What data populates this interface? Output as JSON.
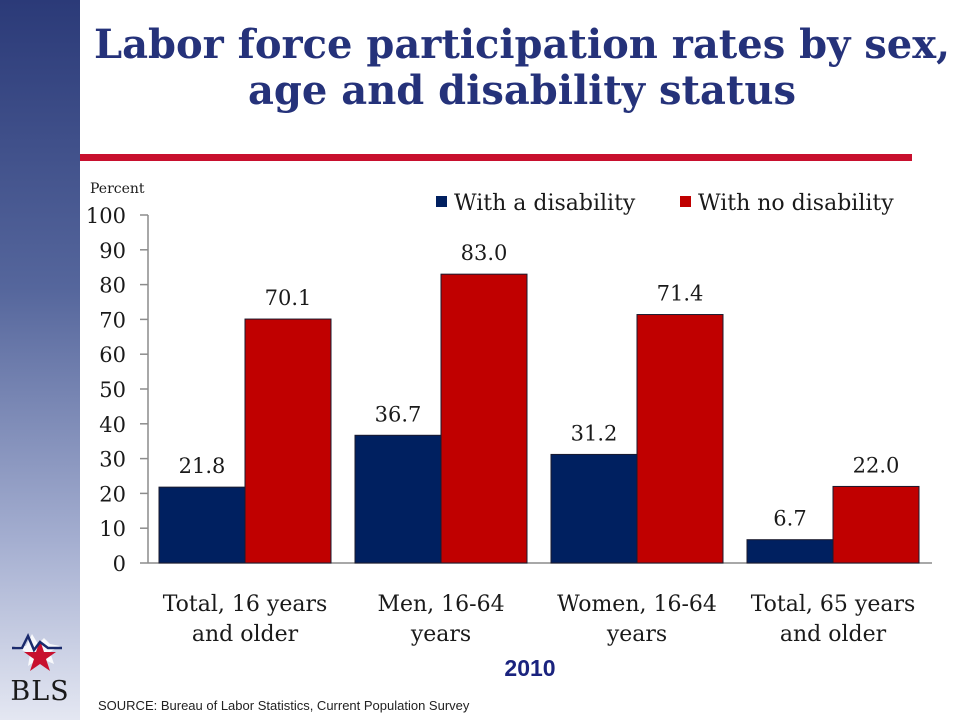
{
  "slide": {
    "title": "Labor force participation rates by sex, age and disability status",
    "year": "2010",
    "source": "SOURCE:  Bureau of Labor Statistics, Current Population Survey",
    "logo_text": "BLS"
  },
  "colors": {
    "with_disability": "#002060",
    "no_disability": "#c00000",
    "title": "#25327a",
    "rule": "#c8102e"
  },
  "chart_data": {
    "type": "bar",
    "ylabel": "Percent",
    "ylim": [
      0,
      100
    ],
    "yticks": [
      0,
      10,
      20,
      30,
      40,
      50,
      60,
      70,
      80,
      90,
      100
    ],
    "grid": false,
    "legend_position": "top-right",
    "categories": [
      [
        "Total, 16 years",
        "and older"
      ],
      [
        "Men, 16-64",
        "years"
      ],
      [
        "Women, 16-64",
        "years"
      ],
      [
        "Total, 65 years",
        "and older"
      ]
    ],
    "series": [
      {
        "name": "With a disability",
        "color": "#002060",
        "values": [
          21.8,
          36.7,
          31.2,
          6.7
        ],
        "labels": [
          "21.8",
          "36.7",
          "31.2",
          "6.7"
        ]
      },
      {
        "name": "With no disability",
        "color": "#c00000",
        "values": [
          70.1,
          83.0,
          71.4,
          22.0
        ],
        "labels": [
          "70.1",
          "83.0",
          "71.4",
          "22.0"
        ]
      }
    ]
  }
}
